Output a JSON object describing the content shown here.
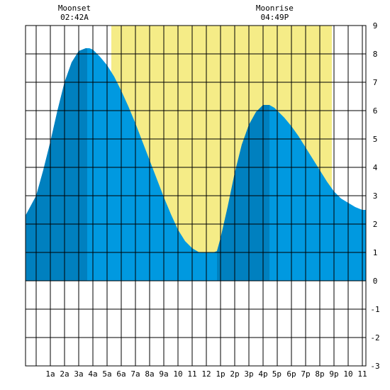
{
  "colors": {
    "background": "#ffffff",
    "daylight": "#f5ec87",
    "tide": "#0099e0",
    "tide_dark": "#0080bf",
    "grid": "#000000"
  },
  "annotations": {
    "moonset": {
      "label": "Moonset",
      "time": "02:42A",
      "hour": 2.7
    },
    "moonrise": {
      "label": "Moonrise",
      "time": "04:49P",
      "hour": 16.82
    }
  },
  "chart_data": {
    "type": "area",
    "title": "",
    "xlabel": "",
    "ylabel": "",
    "xlim": [
      -0.75,
      23.25
    ],
    "ylim": [
      -3,
      9
    ],
    "grid": true,
    "x_tick_labels": [
      "1a",
      "2a",
      "3a",
      "4a",
      "5a",
      "6a",
      "7a",
      "8a",
      "9a",
      "10",
      "11",
      "12",
      "1p",
      "2p",
      "3p",
      "4p",
      "5p",
      "6p",
      "7p",
      "8p",
      "9p",
      "10",
      "11"
    ],
    "x_tick_hours": [
      1,
      2,
      3,
      4,
      5,
      6,
      7,
      8,
      9,
      10,
      11,
      12,
      13,
      14,
      15,
      16,
      16.97,
      18,
      19,
      20,
      21,
      22,
      23
    ],
    "y_ticks": [
      -3,
      -2,
      -1,
      0,
      1,
      2,
      3,
      4,
      5,
      6,
      7,
      8,
      9
    ],
    "daylight_hours": [
      5.3,
      20.85
    ],
    "dark_shading_hours": [
      [
        -0.75,
        3.6
      ],
      [
        12.75,
        16.45
      ]
    ],
    "series": [
      {
        "x": [
          -0.75,
          0,
          0.5,
          1,
          1.5,
          2,
          2.5,
          3,
          3.5,
          3.75,
          4,
          4.5,
          5,
          5.5,
          6,
          6.5,
          7,
          7.5,
          8,
          8.5,
          9,
          9.5,
          10,
          10.5,
          11,
          11.5,
          12,
          12.5,
          12.75,
          13,
          13.5,
          14,
          14.5,
          15,
          15.5,
          16,
          16.45,
          16.8,
          17,
          17.5,
          18,
          18.5,
          19,
          19.5,
          20,
          20.5,
          21,
          21.5,
          22,
          22.5,
          23,
          23.25
        ],
        "y": [
          2.3,
          3.0,
          3.9,
          4.9,
          6.0,
          7.0,
          7.7,
          8.1,
          8.2,
          8.2,
          8.15,
          7.9,
          7.6,
          7.2,
          6.7,
          6.15,
          5.55,
          4.9,
          4.25,
          3.6,
          2.95,
          2.35,
          1.8,
          1.4,
          1.15,
          1.0,
          1.0,
          1.0,
          1.05,
          1.5,
          2.6,
          3.8,
          4.8,
          5.5,
          5.95,
          6.2,
          6.2,
          6.1,
          6.0,
          5.75,
          5.45,
          5.1,
          4.7,
          4.3,
          3.9,
          3.5,
          3.15,
          2.9,
          2.75,
          2.6,
          2.5,
          2.5
        ]
      }
    ]
  }
}
